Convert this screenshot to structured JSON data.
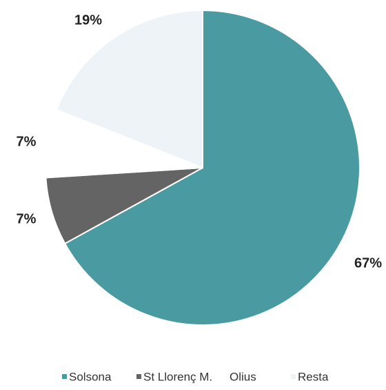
{
  "chart_data": {
    "type": "pie",
    "slices": [
      {
        "label": "Solsona",
        "value": 67,
        "value_label": "67%",
        "color": "#4a9aa1"
      },
      {
        "label": "St Llorenç M.",
        "value": 7,
        "value_label": "7%",
        "color": "#646464"
      },
      {
        "label": "Olius",
        "value": 7,
        "value_label": "7%",
        "color": "#ffffff"
      },
      {
        "label": "Resta",
        "value": 19,
        "value_label": "19%",
        "color": "#eef3f7"
      }
    ],
    "start": "12 o'clock",
    "direction": "clockwise",
    "legend_position": "bottom"
  }
}
